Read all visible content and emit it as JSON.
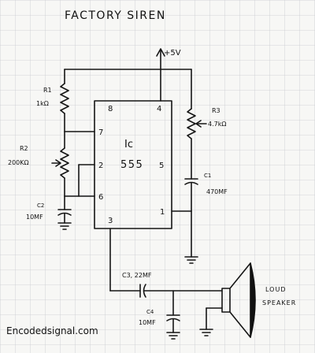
{
  "title": "FACTORY SIREN",
  "supply": "+5V",
  "ic": {
    "line1": "Ic",
    "line2": "555",
    "pins": {
      "p8": "8",
      "p4": "4",
      "p7": "7",
      "p2": "2",
      "p5": "5",
      "p6": "6",
      "p3": "3",
      "p1": "1"
    }
  },
  "r1": {
    "name": "R1",
    "value": "1kΩ"
  },
  "r2": {
    "name": "R2",
    "value": "200KΩ"
  },
  "r3": {
    "name": "R3",
    "value": "4.7kΩ"
  },
  "c1": {
    "name": "C1",
    "value": "470MF"
  },
  "c2": {
    "name": "C2",
    "value": "10MF"
  },
  "c3": {
    "label": "C3, 22MF"
  },
  "c4": {
    "name": "C4",
    "value": "10MF"
  },
  "speaker": {
    "line1": "LOUD",
    "line2": "SPEAKER"
  },
  "watermark": "Encodedsignal.com"
}
